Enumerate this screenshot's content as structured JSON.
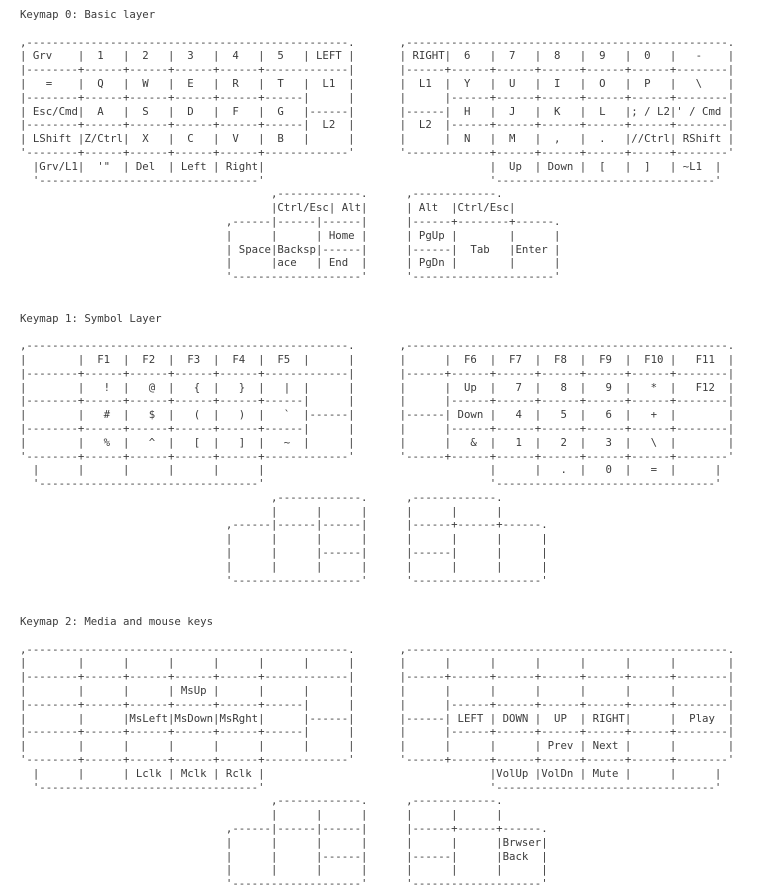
{
  "page": {
    "background_color": "#ffffff",
    "text_color": "#3b3b3b"
  },
  "sections": [
    {
      "title": "Keymap 0: Basic layer",
      "art_lines": [
        ",--------------------------------------------------.       ,--------------------------------------------------.",
        "| Grv    |  1   |  2   |  3   |  4   |  5   | LEFT |       | RIGHT|  6   |  7   |  8   |  9   |  0   |   -    |",
        "|--------+------+------+------+------+-------------|       |------+------+------+------+------+------+--------|",
        "|   =    |  Q   |  W   |  E   |  R   |  T   |  L1  |       |  L1  |  Y   |  U   |  I   |  O   |  P   |   \\    |",
        "|--------+------+------+------+------+------|      |       |      |------+------+------+------+------+--------|",
        "| Esc/Cmd|  A   |  S   |  D   |  F   |  G   |------|       |------|  H   |  J   |  K   |  L   |; / L2|' / Cmd |",
        "|--------+------+------+------+------+------|  L2  |       |  L2  |------+------+------+------+------+--------|",
        "| LShift |Z/Ctrl|  X   |  C   |  V   |  B   |      |       |      |  N   |  M   |  ,   |  .   |//Ctrl| RShift |",
        "'--------+------+------+------+------+-------------'       '-------------+------+------+------+------+--------'",
        "  |Grv/L1|  '\"  | Del  | Left | Right|                                   |  Up  | Down |  [   |  ]   | ~L1  |",
        "  '----------------------------------'                                   '----------------------------------'",
        "                                       ,-------------.      ,-------------.",
        "                                       |Ctrl/Esc| Alt|      | Alt  |Ctrl/Esc|",
        "                                ,------|------|------|      |------+--------+------.",
        "                                |      |      | Home |      | PgUp |        |      |",
        "                                | Space|Backsp|------|      |------|  Tab   |Enter |",
        "                                |      |ace   | End  |      | PgDn |        |      |",
        "                                '--------------------'      '----------------------'"
      ]
    },
    {
      "title": "Keymap 1: Symbol Layer",
      "art_lines": [
        ",--------------------------------------------------.       ,--------------------------------------------------.",
        "|        |  F1  |  F2  |  F3  |  F4  |  F5  |      |       |      |  F6  |  F7  |  F8  |  F9  |  F10 |   F11  |",
        "|--------+------+------+------+------+-------------|       |------+------+------+------+------+------+--------|",
        "|        |   !  |   @  |   {  |   }  |   |  |      |       |      |  Up  |   7  |   8  |   9  |   *  |   F12  |",
        "|--------+------+------+------+------+------|      |       |      |------+------+------+------+------+--------|",
        "|        |   #  |   $  |   (  |   )  |   `  |------|       |------| Down |   4  |   5  |   6  |   +  |        |",
        "|--------+------+------+------+------+------|      |       |      |------+------+------+------+------+--------|",
        "|        |   %  |   ^  |   [  |   ]  |   ~  |      |       |      |   &  |   1  |   2  |   3  |   \\  |        |",
        "'--------+------+------+------+------+-------------'       '------+------+------+------+------+------+--------'",
        "  |      |      |      |      |      |                                   |      |   .  |   0  |   =  |      |",
        "  '----------------------------------'                                   '----------------------------------'",
        "                                       ,-------------.      ,-------------.",
        "                                       |      |      |      |      |      |",
        "                                ,------|------|------|      |------+------+------.",
        "                                |      |      |      |      |      |      |      |",
        "                                |      |      |------|      |------|      |      |",
        "                                |      |      |      |      |      |      |      |",
        "                                '--------------------'      '--------------------'"
      ]
    },
    {
      "title": "Keymap 2: Media and mouse keys",
      "art_lines": [
        ",--------------------------------------------------.       ,--------------------------------------------------.",
        "|        |      |      |      |      |      |      |       |      |      |      |      |      |      |        |",
        "|--------+------+------+------+------+-------------|       |------+------+------+------+------+------+--------|",
        "|        |      |      | MsUp |      |      |      |       |      |      |      |      |      |      |        |",
        "|--------+------+------+------+------+------|      |       |      |------+------+------+------+------+--------|",
        "|        |      |MsLeft|MsDown|MsRght|      |------|       |------| LEFT | DOWN |  UP  | RIGHT|      |  Play  |",
        "|--------+------+------+------+------+------|      |       |      |------+------+------+------+------+--------|",
        "|        |      |      |      |      |      |      |       |      |      |      | Prev | Next |      |        |",
        "'--------+------+------+------+------+-------------'       '------+------+------+------+------+------+--------'",
        "  |      |      | Lclk | Mclk | Rclk |                                   |VolUp |VolDn | Mute |      |      |",
        "  '----------------------------------'                                   '----------------------------------'",
        "                                       ,-------------.      ,-------------.",
        "                                       |      |      |      |      |      |",
        "                                ,------|------|------|      |------+------+------.",
        "                                |      |      |      |      |      |      |Brwser|",
        "                                |      |      |------|      |------|      |Back  |",
        "                                |      |      |      |      |      |      |      |",
        "                                '--------------------'      '--------------------'"
      ]
    }
  ]
}
